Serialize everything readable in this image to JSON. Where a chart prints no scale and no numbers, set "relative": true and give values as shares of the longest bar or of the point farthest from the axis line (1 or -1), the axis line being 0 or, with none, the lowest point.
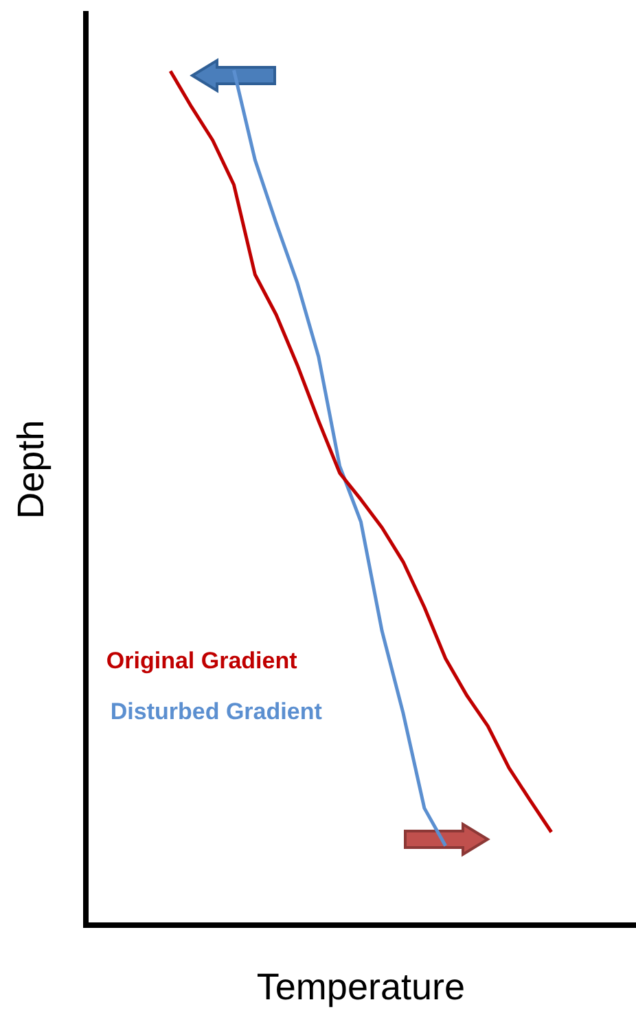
{
  "chart_data": {
    "type": "line",
    "xlabel": "Temperature",
    "ylabel": "Depth",
    "relative": true,
    "marker": "none",
    "grid": false,
    "categories": [
      null,
      null,
      null,
      null,
      null,
      null,
      null,
      null,
      null,
      null,
      null,
      null,
      null,
      null,
      null,
      null,
      null,
      null,
      null,
      null,
      null,
      null,
      null,
      null,
      null,
      null,
      null
    ],
    "series": [
      {
        "name": "Original Gradient",
        "color": "#c00000",
        "values": [
          null,
          null,
          null,
          null,
          0.999,
          0.957,
          0.918,
          0.866,
          0.761,
          0.714,
          0.655,
          0.59,
          0.529,
          0.498,
          0.465,
          0.425,
          0.372,
          0.312,
          0.269,
          0.233,
          0.184,
          0.146,
          0.109,
          null,
          null,
          null,
          null
        ]
      },
      {
        "name": "Disturbed Gradient",
        "color": "#5b8fd0",
        "values": [
          null,
          null,
          null,
          null,
          null,
          null,
          null,
          1,
          0.895,
          0.821,
          0.751,
          0.665,
          0.537,
          0.472,
          0.344,
          0.248,
          0.137,
          0.093,
          null,
          null,
          null,
          null,
          null,
          null,
          null,
          null,
          null
        ]
      }
    ]
  }
}
